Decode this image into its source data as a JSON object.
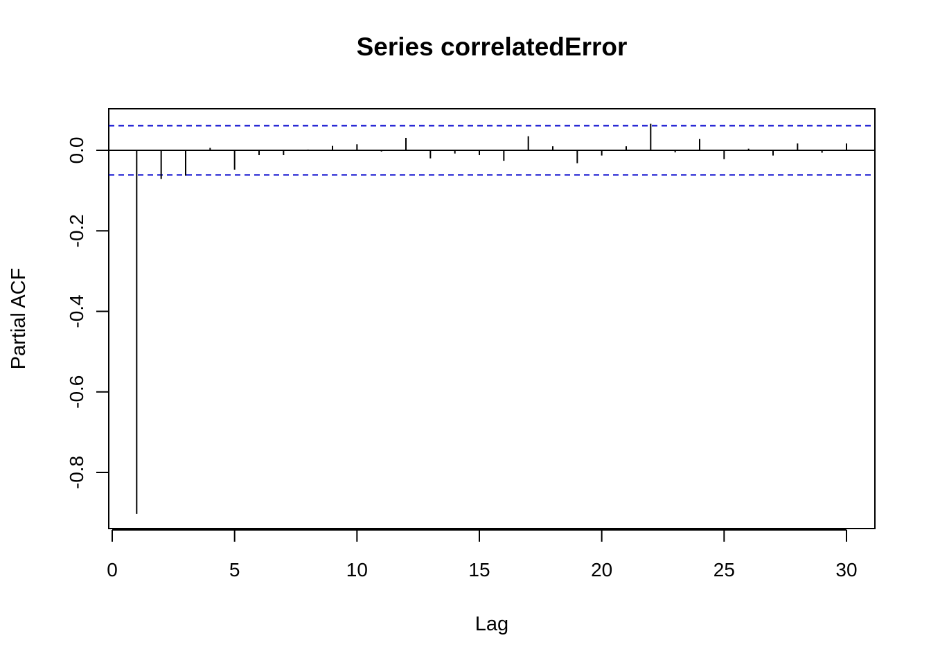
{
  "chart_data": {
    "type": "bar",
    "title": "Series  correlatedError",
    "xlabel": "Lag",
    "ylabel": "Partial ACF",
    "xlim": [
      0,
      30
    ],
    "ylim": [
      -0.9,
      0.1
    ],
    "x_ticks": [
      0,
      5,
      10,
      15,
      20,
      25,
      30
    ],
    "y_ticks": [
      0.0,
      -0.2,
      -0.4,
      -0.6,
      -0.8
    ],
    "y_tick_labels": [
      "0.0",
      "-0.2",
      "-0.4",
      "-0.6",
      "-0.8"
    ],
    "x_tick_labels": [
      "0",
      "5",
      "10",
      "15",
      "20",
      "25",
      "30"
    ],
    "confidence_bound": 0.061,
    "bound_color": "#0000cc",
    "bar_color": "#000000",
    "lags": [
      1,
      2,
      3,
      4,
      5,
      6,
      7,
      8,
      9,
      10,
      11,
      12,
      13,
      14,
      15,
      16,
      17,
      18,
      19,
      20,
      21,
      22,
      23,
      24,
      25,
      26,
      27,
      28,
      29,
      30
    ],
    "values": [
      -0.903,
      -0.071,
      -0.063,
      0.006,
      -0.048,
      -0.012,
      -0.012,
      0.002,
      0.011,
      0.015,
      -0.003,
      0.031,
      -0.02,
      -0.008,
      -0.012,
      -0.026,
      0.035,
      0.01,
      -0.032,
      -0.013,
      0.01,
      0.066,
      -0.005,
      0.028,
      -0.022,
      0.004,
      -0.013,
      0.017,
      -0.006,
      0.017
    ]
  }
}
